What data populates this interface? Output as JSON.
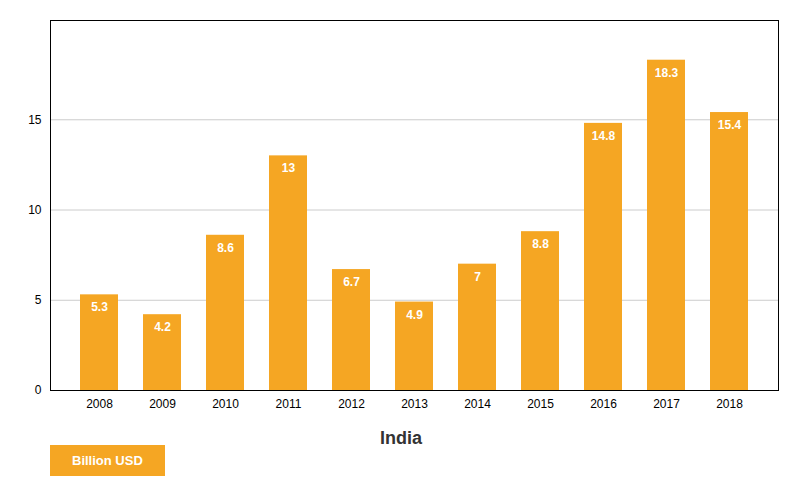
{
  "chart_data": {
    "type": "bar",
    "title": "India",
    "categories": [
      "2008",
      "2009",
      "2010",
      "2011",
      "2012",
      "2013",
      "2014",
      "2015",
      "2016",
      "2017",
      "2018"
    ],
    "series": [
      {
        "name": "Billion USD",
        "color": "#F5A623",
        "values": [
          5.3,
          4.2,
          8.6,
          13.0,
          6.7,
          4.9,
          7.0,
          8.8,
          14.8,
          18.3,
          15.4
        ]
      }
    ],
    "ylim": [
      0,
      20.5
    ],
    "yticks": [
      0,
      5,
      10,
      15
    ],
    "grid": true,
    "data_labels": true,
    "legend": "lower left"
  }
}
